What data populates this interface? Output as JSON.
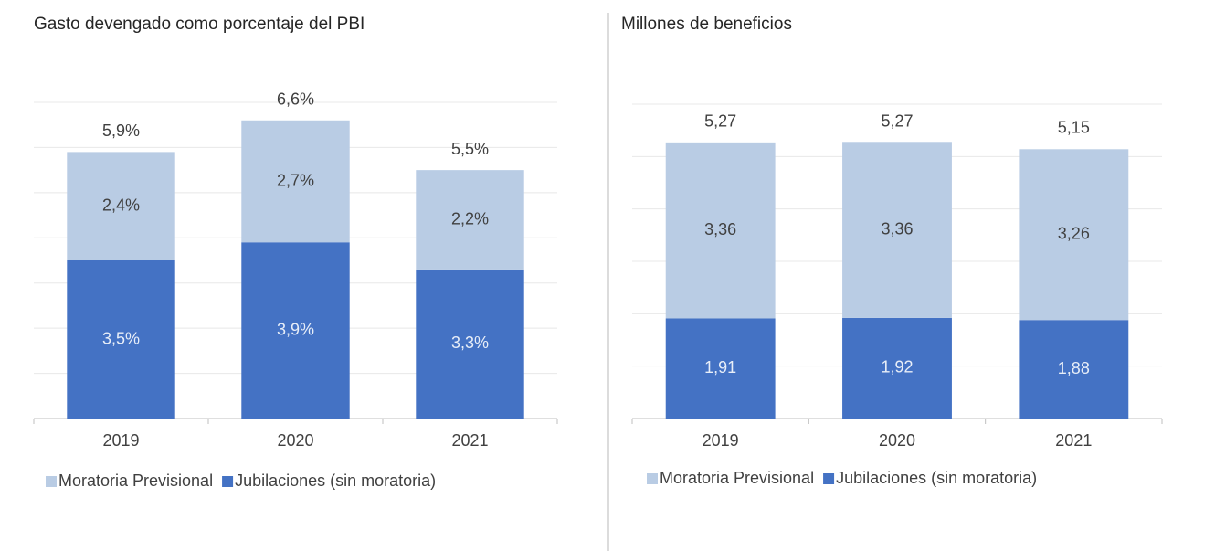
{
  "chart_data": [
    {
      "type": "stacked_bar",
      "title": "Gasto devengado como porcentaje del PBI",
      "categories": [
        "2019",
        "2020",
        "2021"
      ],
      "series": [
        {
          "name": "Moratoria Previsional",
          "color": "#b9cce4",
          "values": [
            2.4,
            2.7,
            2.2
          ],
          "value_labels": [
            "2,4%",
            "2,7%",
            "2,2%"
          ]
        },
        {
          "name": "Jubilaciones (sin moratoria)",
          "color": "#4472c4",
          "values": [
            3.5,
            3.9,
            3.3
          ],
          "value_labels": [
            "3,5%",
            "3,9%",
            "3,3%"
          ]
        }
      ],
      "totals": [
        5.9,
        6.6,
        5.5
      ],
      "total_labels": [
        "5,9%",
        "6,6%",
        "5,5%"
      ],
      "ylim": [
        0,
        7
      ],
      "yticks": [
        0,
        1,
        2,
        3,
        4,
        5,
        6,
        7
      ],
      "grid": true,
      "legend": "bottom"
    },
    {
      "type": "stacked_bar",
      "title": "Millones de beneficios",
      "categories": [
        "2019",
        "2020",
        "2021"
      ],
      "series": [
        {
          "name": "Moratoria Previsional",
          "color": "#b9cce4",
          "values": [
            3.36,
            3.36,
            3.26
          ],
          "value_labels": [
            "3,36",
            "3,36",
            "3,26"
          ]
        },
        {
          "name": "Jubilaciones (sin moratoria)",
          "color": "#4472c4",
          "values": [
            1.91,
            1.92,
            1.88
          ],
          "value_labels": [
            "1,91",
            "1,92",
            "1,88"
          ]
        }
      ],
      "totals": [
        5.27,
        5.27,
        5.15
      ],
      "total_labels": [
        "5,27",
        "5,27",
        "5,15"
      ],
      "ylim": [
        0,
        6
      ],
      "yticks": [
        0,
        1,
        2,
        3,
        4,
        5,
        6
      ],
      "grid": true,
      "legend": "bottom"
    }
  ]
}
